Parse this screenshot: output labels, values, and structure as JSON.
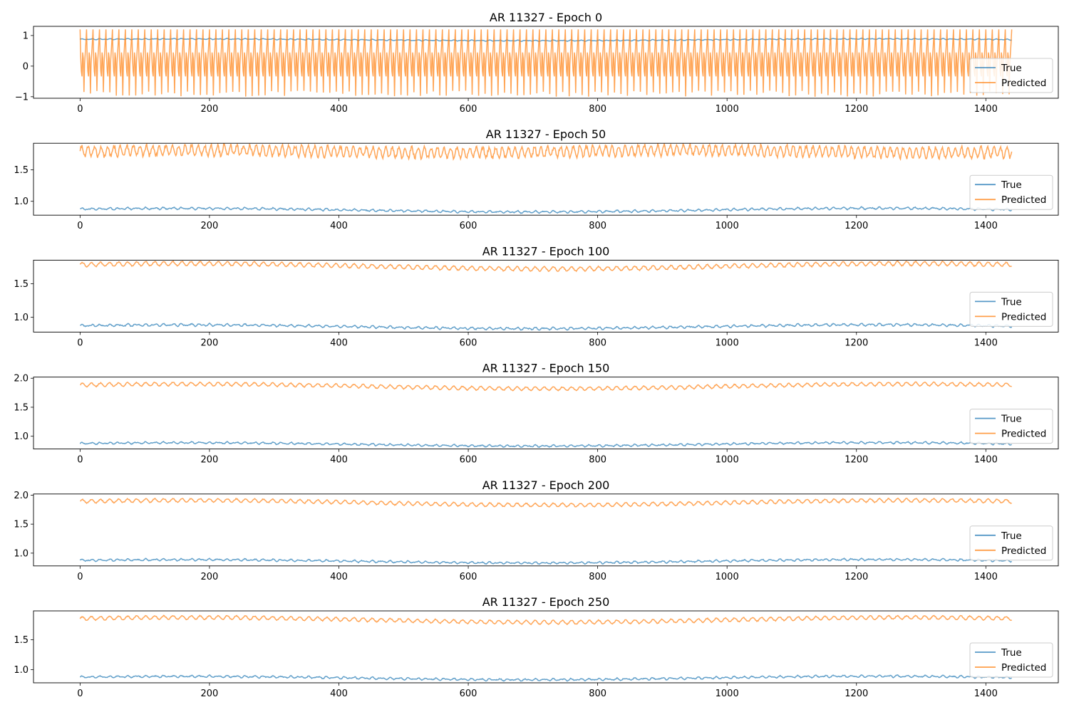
{
  "colors": {
    "true": "#1f77b4",
    "predicted": "#ff7f0e",
    "axes": "#000000",
    "legend_border": "#cccccc"
  },
  "chart_data": [
    {
      "type": "line",
      "title": "AR 11327 - Epoch 0",
      "xlim": [
        -72,
        1512
      ],
      "ylim": [
        -1.05,
        1.3
      ],
      "xticks": [
        0,
        200,
        400,
        600,
        800,
        1000,
        1200,
        1400
      ],
      "yticks": [
        {
          "value": -1,
          "label": "−1"
        },
        {
          "value": 0,
          "label": "0"
        },
        {
          "value": 1,
          "label": "1"
        }
      ],
      "legend": "lower-right",
      "series": [
        {
          "name": "True",
          "x_range": [
            0,
            1440
          ],
          "baseline": 0.86,
          "amplitude": 0.02,
          "period": 30
        },
        {
          "name": "Predicted",
          "x_range": [
            0,
            1440
          ],
          "baseline": 0.1,
          "amplitude": 1.1,
          "period": 10,
          "min": -1.0,
          "max": 1.2
        }
      ]
    },
    {
      "type": "line",
      "title": "AR 11327 - Epoch 50",
      "xlim": [
        -72,
        1512
      ],
      "ylim": [
        0.78,
        1.92
      ],
      "xticks": [
        0,
        200,
        400,
        600,
        800,
        1000,
        1200,
        1400
      ],
      "yticks": [
        {
          "value": 1.0,
          "label": "1.0"
        },
        {
          "value": 1.5,
          "label": "1.5"
        }
      ],
      "legend": "lower-right",
      "series": [
        {
          "name": "True",
          "x_range": [
            0,
            1440
          ],
          "baseline": 0.86,
          "amplitude": 0.02,
          "period": 10
        },
        {
          "name": "Predicted",
          "x_range": [
            0,
            1440
          ],
          "baseline": 1.79,
          "amplitude": 0.08,
          "period": 10
        }
      ]
    },
    {
      "type": "line",
      "title": "AR 11327 - Epoch 100",
      "xlim": [
        -72,
        1512
      ],
      "ylim": [
        0.78,
        1.85
      ],
      "xticks": [
        0,
        200,
        400,
        600,
        800,
        1000,
        1200,
        1400
      ],
      "yticks": [
        {
          "value": 1.0,
          "label": "1.0"
        },
        {
          "value": 1.5,
          "label": "1.5"
        }
      ],
      "legend": "lower-right",
      "series": [
        {
          "name": "True",
          "x_range": [
            0,
            1440
          ],
          "baseline": 0.86,
          "amplitude": 0.02,
          "period": 10
        },
        {
          "name": "Predicted",
          "x_range": [
            0,
            1440
          ],
          "baseline": 1.76,
          "amplitude": 0.03,
          "period": 14
        }
      ]
    },
    {
      "type": "line",
      "title": "AR 11327 - Epoch 150",
      "xlim": [
        -72,
        1512
      ],
      "ylim": [
        0.78,
        2.02
      ],
      "xticks": [
        0,
        200,
        400,
        600,
        800,
        1000,
        1200,
        1400
      ],
      "yticks": [
        {
          "value": 1.0,
          "label": "1.0"
        },
        {
          "value": 1.5,
          "label": "1.5"
        },
        {
          "value": 2.0,
          "label": "2.0"
        }
      ],
      "legend": "lower-right",
      "series": [
        {
          "name": "True",
          "x_range": [
            0,
            1440
          ],
          "baseline": 0.86,
          "amplitude": 0.02,
          "period": 10
        },
        {
          "name": "Predicted",
          "x_range": [
            0,
            1440
          ],
          "baseline": 1.86,
          "amplitude": 0.03,
          "period": 14
        }
      ]
    },
    {
      "type": "line",
      "title": "AR 11327 - Epoch 200",
      "xlim": [
        -72,
        1512
      ],
      "ylim": [
        0.78,
        2.02
      ],
      "xticks": [
        0,
        200,
        400,
        600,
        800,
        1000,
        1200,
        1400
      ],
      "yticks": [
        {
          "value": 1.0,
          "label": "1.0"
        },
        {
          "value": 1.5,
          "label": "1.5"
        },
        {
          "value": 2.0,
          "label": "2.0"
        }
      ],
      "legend": "lower-right",
      "series": [
        {
          "name": "True",
          "x_range": [
            0,
            1440
          ],
          "baseline": 0.86,
          "amplitude": 0.02,
          "period": 10
        },
        {
          "name": "Predicted",
          "x_range": [
            0,
            1440
          ],
          "baseline": 1.87,
          "amplitude": 0.03,
          "period": 14
        }
      ]
    },
    {
      "type": "line",
      "title": "AR 11327 - Epoch 250",
      "xlim": [
        -72,
        1512
      ],
      "ylim": [
        0.78,
        1.98
      ],
      "xticks": [
        0,
        200,
        400,
        600,
        800,
        1000,
        1200,
        1400
      ],
      "yticks": [
        {
          "value": 1.0,
          "label": "1.0"
        },
        {
          "value": 1.5,
          "label": "1.5"
        }
      ],
      "legend": "lower-right",
      "series": [
        {
          "name": "True",
          "x_range": [
            0,
            1440
          ],
          "baseline": 0.86,
          "amplitude": 0.02,
          "period": 10
        },
        {
          "name": "Predicted",
          "x_range": [
            0,
            1440
          ],
          "baseline": 1.83,
          "amplitude": 0.03,
          "period": 14
        }
      ]
    }
  ]
}
